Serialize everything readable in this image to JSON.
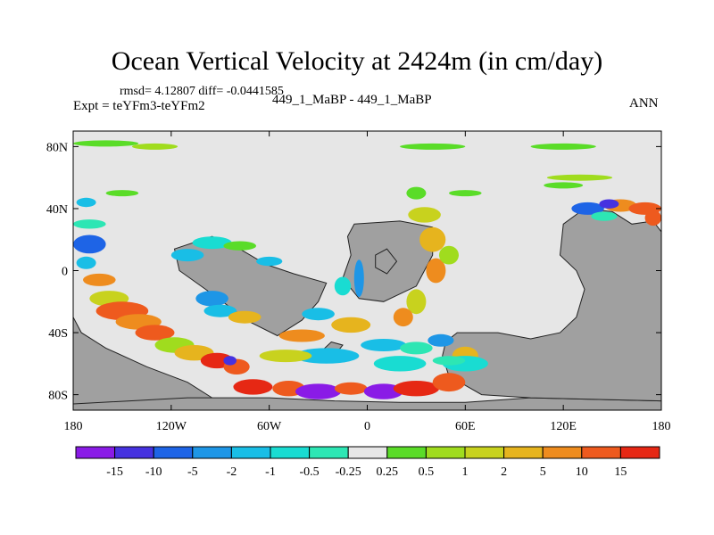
{
  "chart_data": {
    "type": "heatmap",
    "title": "Ocean Vertical Velocity at 2424m (in cm/day)",
    "subtitle_stats": "rmsd= 4.12807 diff= -0.0441585",
    "left_label": "Expt = teYFm3-teYFm2",
    "center_label": "449_1_MaBP - 449_1_MaBP",
    "right_label": "ANN",
    "projection": "cylindrical equidistant",
    "xlim": [
      -180,
      180
    ],
    "ylim": [
      -90,
      90
    ],
    "x_ticks": [
      {
        "value": -180,
        "label": "180"
      },
      {
        "value": -120,
        "label": "120W"
      },
      {
        "value": -60,
        "label": "60W"
      },
      {
        "value": 0,
        "label": "0"
      },
      {
        "value": 60,
        "label": "60E"
      },
      {
        "value": 120,
        "label": "120E"
      },
      {
        "value": 180,
        "label": "180"
      }
    ],
    "y_ticks": [
      {
        "value": 80,
        "label": "80N"
      },
      {
        "value": 40,
        "label": "40N"
      },
      {
        "value": 0,
        "label": "0"
      },
      {
        "value": -40,
        "label": "40S"
      },
      {
        "value": -80,
        "label": "80S"
      }
    ],
    "colorbar": {
      "levels": [
        "-15",
        "-10",
        "-5",
        "-2",
        "-1",
        "-0.5",
        "-0.25",
        "0.25",
        "0.5",
        "1",
        "2",
        "5",
        "10",
        "15"
      ],
      "colors": [
        "#8a1be6",
        "#4632e0",
        "#1e64e6",
        "#1e96e6",
        "#19bee6",
        "#19dcd2",
        "#2de6b4",
        "#e6e6e6",
        "#5adc28",
        "#a0dc1e",
        "#c8d21e",
        "#e6b41e",
        "#ee8c1e",
        "#ee5a1e",
        "#e62814"
      ]
    },
    "land_color": "#a0a0a0",
    "neutral_color": "#e6e6e6"
  }
}
